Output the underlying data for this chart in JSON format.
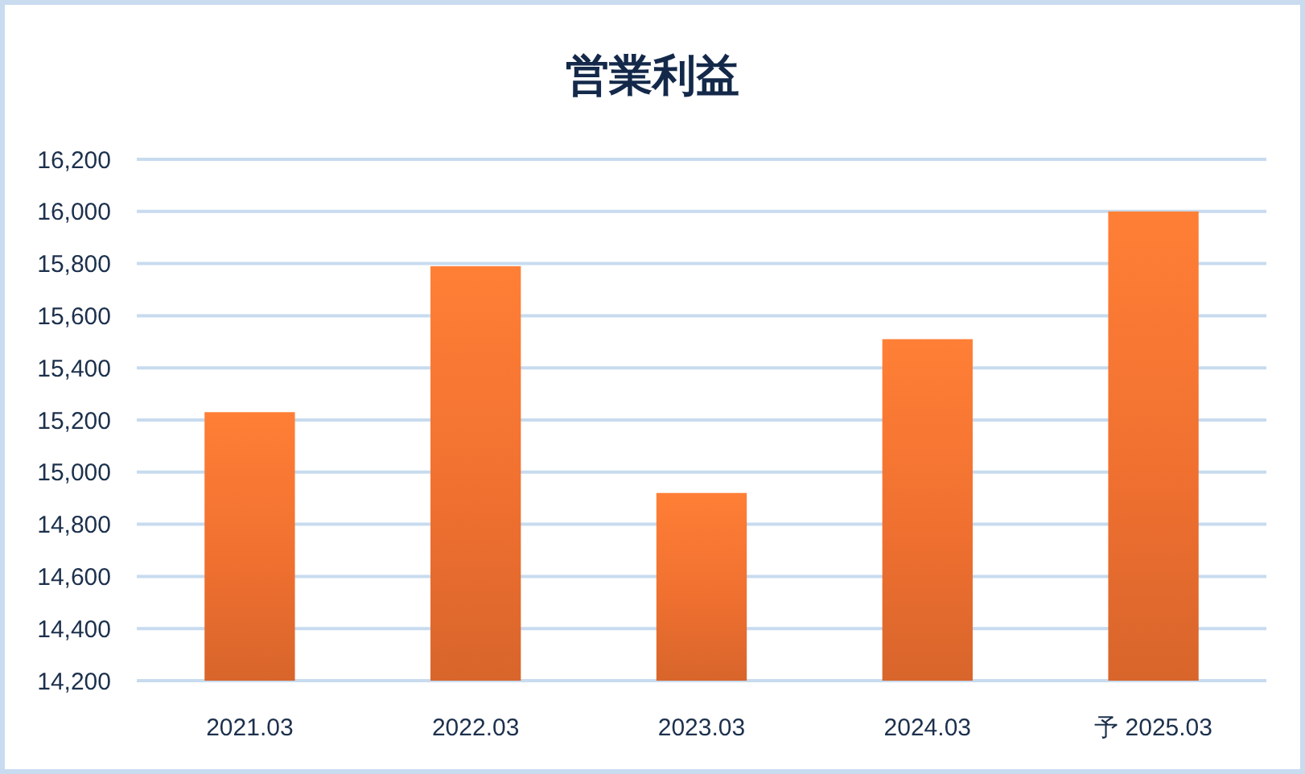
{
  "chart_data": {
    "type": "bar",
    "title": "営業利益",
    "categories": [
      "2021.03",
      "2022.03",
      "2023.03",
      "2024.03",
      "予 2025.03"
    ],
    "values": [
      15230,
      15790,
      14920,
      15510,
      16000
    ],
    "color": "#f07030",
    "ylim": [
      14200,
      16200
    ],
    "yticks": [
      {
        "value": 14200,
        "label": "14,200"
      },
      {
        "value": 14400,
        "label": "14,400"
      },
      {
        "value": 14600,
        "label": "14,600"
      },
      {
        "value": 14800,
        "label": "14,800"
      },
      {
        "value": 15000,
        "label": "15,000"
      },
      {
        "value": 15200,
        "label": "15,200"
      },
      {
        "value": 15400,
        "label": "15,400"
      },
      {
        "value": 15600,
        "label": "15,600"
      },
      {
        "value": 15800,
        "label": "15,800"
      },
      {
        "value": 16000,
        "label": "16,000"
      },
      {
        "value": 16200,
        "label": "16,200"
      }
    ],
    "grid": "y"
  }
}
